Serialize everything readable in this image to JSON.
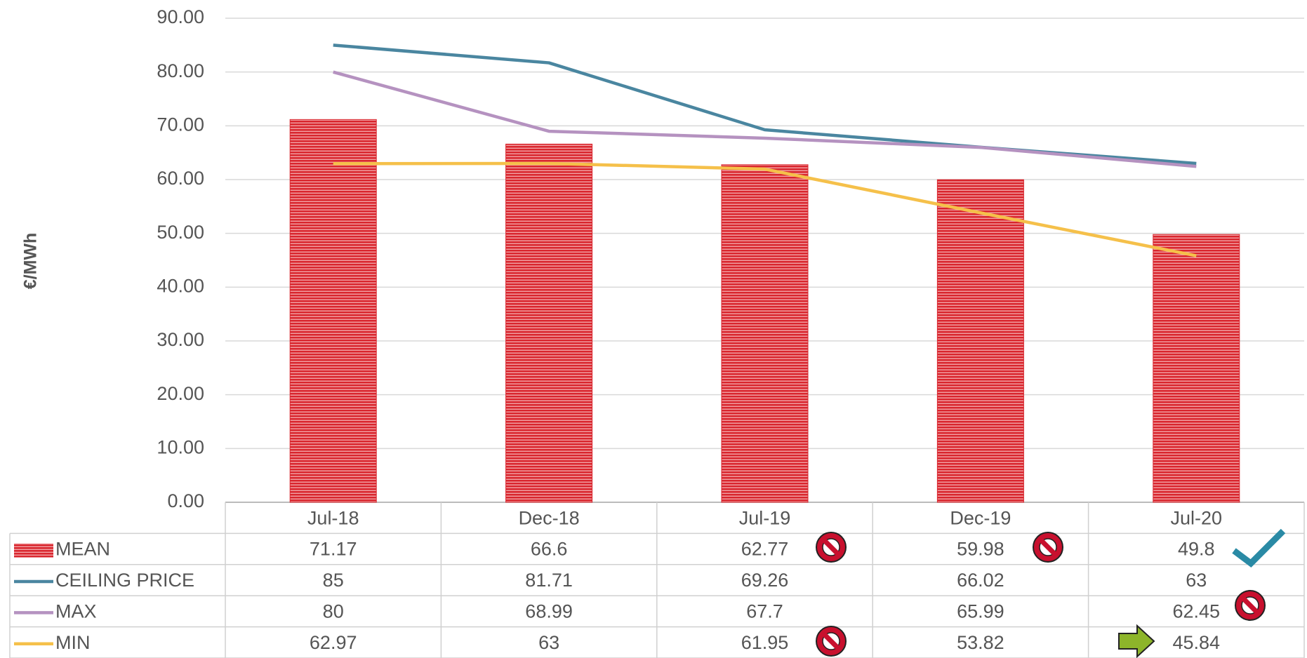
{
  "chart_data": {
    "type": "bar_line_table",
    "y_label": "€/MWh",
    "categories": [
      "Jul-18",
      "Dec-18",
      "Jul-19",
      "Dec-19",
      "Jul-20"
    ],
    "series": [
      {
        "name": "MEAN",
        "type": "bar",
        "color": "#d9262e",
        "values": [
          71.17,
          66.6,
          62.77,
          59.98,
          49.8
        ]
      },
      {
        "name": "CEILING PRICE",
        "type": "line",
        "color": "#4a86a0",
        "values": [
          85,
          81.71,
          69.26,
          66.02,
          63
        ]
      },
      {
        "name": "MAX",
        "type": "line",
        "color": "#b592c0",
        "values": [
          80,
          68.99,
          67.7,
          65.99,
          62.45
        ]
      },
      {
        "name": "MIN",
        "type": "line",
        "color": "#f5c04a",
        "values": [
          62.97,
          63,
          61.95,
          53.82,
          45.84
        ]
      }
    ],
    "ylim": [
      0,
      90
    ],
    "yticks": [
      {
        "value": 0,
        "label": "0.00"
      },
      {
        "value": 10,
        "label": "10.00"
      },
      {
        "value": 20,
        "label": "20.00"
      },
      {
        "value": 30,
        "label": "30.00"
      },
      {
        "value": 40,
        "label": "40.00"
      },
      {
        "value": 50,
        "label": "50.00"
      },
      {
        "value": 60,
        "label": "60.00"
      },
      {
        "value": 70,
        "label": "70.00"
      },
      {
        "value": 80,
        "label": "80.00"
      },
      {
        "value": 90,
        "label": "90.00"
      }
    ],
    "grid": true
  }
}
